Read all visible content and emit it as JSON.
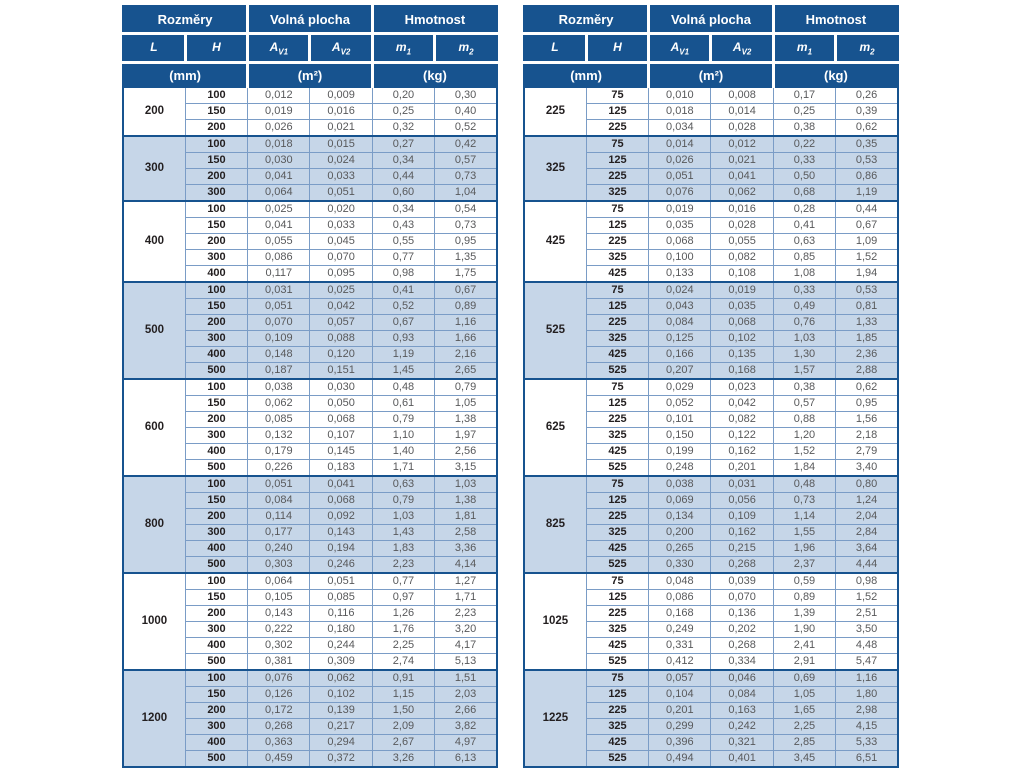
{
  "colors": {
    "header_bg": "#17538f",
    "header_text": "#ffffff",
    "row_alt_bg": "#c6d6e8",
    "grid_line": "#7a9cc6",
    "dimension_text": "#231f20",
    "value_text": "#58595b"
  },
  "header": {
    "groups": [
      {
        "label": "Rozměry",
        "unit": "(mm)"
      },
      {
        "label": "Volná plocha",
        "unit": "(m²)"
      },
      {
        "label": "Hmotnost",
        "unit": "(kg)"
      }
    ],
    "columns": [
      {
        "base": "L",
        "sub": ""
      },
      {
        "base": "H",
        "sub": ""
      },
      {
        "base": "A",
        "sub": "V1"
      },
      {
        "base": "A",
        "sub": "V2"
      },
      {
        "base": "m",
        "sub": "1"
      },
      {
        "base": "m",
        "sub": "2"
      }
    ]
  },
  "tables": [
    {
      "id": "left",
      "groups": [
        {
          "L": "200",
          "rows": [
            {
              "H": "100",
              "values": [
                "0,012",
                "0,009",
                "0,20",
                "0,30"
              ]
            },
            {
              "H": "150",
              "values": [
                "0,019",
                "0,016",
                "0,25",
                "0,40"
              ]
            },
            {
              "H": "200",
              "values": [
                "0,026",
                "0,021",
                "0,32",
                "0,52"
              ]
            }
          ]
        },
        {
          "L": "300",
          "rows": [
            {
              "H": "100",
              "values": [
                "0,018",
                "0,015",
                "0,27",
                "0,42"
              ]
            },
            {
              "H": "150",
              "values": [
                "0,030",
                "0,024",
                "0,34",
                "0,57"
              ]
            },
            {
              "H": "200",
              "values": [
                "0,041",
                "0,033",
                "0,44",
                "0,73"
              ]
            },
            {
              "H": "300",
              "values": [
                "0,064",
                "0,051",
                "0,60",
                "1,04"
              ]
            }
          ]
        },
        {
          "L": "400",
          "rows": [
            {
              "H": "100",
              "values": [
                "0,025",
                "0,020",
                "0,34",
                "0,54"
              ]
            },
            {
              "H": "150",
              "values": [
                "0,041",
                "0,033",
                "0,43",
                "0,73"
              ]
            },
            {
              "H": "200",
              "values": [
                "0,055",
                "0,045",
                "0,55",
                "0,95"
              ]
            },
            {
              "H": "300",
              "values": [
                "0,086",
                "0,070",
                "0,77",
                "1,35"
              ]
            },
            {
              "H": "400",
              "values": [
                "0,117",
                "0,095",
                "0,98",
                "1,75"
              ]
            }
          ]
        },
        {
          "L": "500",
          "rows": [
            {
              "H": "100",
              "values": [
                "0,031",
                "0,025",
                "0,41",
                "0,67"
              ]
            },
            {
              "H": "150",
              "values": [
                "0,051",
                "0,042",
                "0,52",
                "0,89"
              ]
            },
            {
              "H": "200",
              "values": [
                "0,070",
                "0,057",
                "0,67",
                "1,16"
              ]
            },
            {
              "H": "300",
              "values": [
                "0,109",
                "0,088",
                "0,93",
                "1,66"
              ]
            },
            {
              "H": "400",
              "values": [
                "0,148",
                "0,120",
                "1,19",
                "2,16"
              ]
            },
            {
              "H": "500",
              "values": [
                "0,187",
                "0,151",
                "1,45",
                "2,65"
              ]
            }
          ]
        },
        {
          "L": "600",
          "rows": [
            {
              "H": "100",
              "values": [
                "0,038",
                "0,030",
                "0,48",
                "0,79"
              ]
            },
            {
              "H": "150",
              "values": [
                "0,062",
                "0,050",
                "0,61",
                "1,05"
              ]
            },
            {
              "H": "200",
              "values": [
                "0,085",
                "0,068",
                "0,79",
                "1,38"
              ]
            },
            {
              "H": "300",
              "values": [
                "0,132",
                "0,107",
                "1,10",
                "1,97"
              ]
            },
            {
              "H": "400",
              "values": [
                "0,179",
                "0,145",
                "1,40",
                "2,56"
              ]
            },
            {
              "H": "500",
              "values": [
                "0,226",
                "0,183",
                "1,71",
                "3,15"
              ]
            }
          ]
        },
        {
          "L": "800",
          "rows": [
            {
              "H": "100",
              "values": [
                "0,051",
                "0,041",
                "0,63",
                "1,03"
              ]
            },
            {
              "H": "150",
              "values": [
                "0,084",
                "0,068",
                "0,79",
                "1,38"
              ]
            },
            {
              "H": "200",
              "values": [
                "0,114",
                "0,092",
                "1,03",
                "1,81"
              ]
            },
            {
              "H": "300",
              "values": [
                "0,177",
                "0,143",
                "1,43",
                "2,58"
              ]
            },
            {
              "H": "400",
              "values": [
                "0,240",
                "0,194",
                "1,83",
                "3,36"
              ]
            },
            {
              "H": "500",
              "values": [
                "0,303",
                "0,246",
                "2,23",
                "4,14"
              ]
            }
          ]
        },
        {
          "L": "1000",
          "rows": [
            {
              "H": "100",
              "values": [
                "0,064",
                "0,051",
                "0,77",
                "1,27"
              ]
            },
            {
              "H": "150",
              "values": [
                "0,105",
                "0,085",
                "0,97",
                "1,71"
              ]
            },
            {
              "H": "200",
              "values": [
                "0,143",
                "0,116",
                "1,26",
                "2,23"
              ]
            },
            {
              "H": "300",
              "values": [
                "0,222",
                "0,180",
                "1,76",
                "3,20"
              ]
            },
            {
              "H": "400",
              "values": [
                "0,302",
                "0,244",
                "2,25",
                "4,17"
              ]
            },
            {
              "H": "500",
              "values": [
                "0,381",
                "0,309",
                "2,74",
                "5,13"
              ]
            }
          ]
        },
        {
          "L": "1200",
          "rows": [
            {
              "H": "100",
              "values": [
                "0,076",
                "0,062",
                "0,91",
                "1,51"
              ]
            },
            {
              "H": "150",
              "values": [
                "0,126",
                "0,102",
                "1,15",
                "2,03"
              ]
            },
            {
              "H": "200",
              "values": [
                "0,172",
                "0,139",
                "1,50",
                "2,66"
              ]
            },
            {
              "H": "300",
              "values": [
                "0,268",
                "0,217",
                "2,09",
                "3,82"
              ]
            },
            {
              "H": "400",
              "values": [
                "0,363",
                "0,294",
                "2,67",
                "4,97"
              ]
            },
            {
              "H": "500",
              "values": [
                "0,459",
                "0,372",
                "3,26",
                "6,13"
              ]
            }
          ]
        }
      ]
    },
    {
      "id": "right",
      "groups": [
        {
          "L": "225",
          "rows": [
            {
              "H": "75",
              "values": [
                "0,010",
                "0,008",
                "0,17",
                "0,26"
              ]
            },
            {
              "H": "125",
              "values": [
                "0,018",
                "0,014",
                "0,25",
                "0,39"
              ]
            },
            {
              "H": "225",
              "values": [
                "0,034",
                "0,028",
                "0,38",
                "0,62"
              ]
            }
          ]
        },
        {
          "L": "325",
          "rows": [
            {
              "H": "75",
              "values": [
                "0,014",
                "0,012",
                "0,22",
                "0,35"
              ]
            },
            {
              "H": "125",
              "values": [
                "0,026",
                "0,021",
                "0,33",
                "0,53"
              ]
            },
            {
              "H": "225",
              "values": [
                "0,051",
                "0,041",
                "0,50",
                "0,86"
              ]
            },
            {
              "H": "325",
              "values": [
                "0,076",
                "0,062",
                "0,68",
                "1,19"
              ]
            }
          ]
        },
        {
          "L": "425",
          "rows": [
            {
              "H": "75",
              "values": [
                "0,019",
                "0,016",
                "0,28",
                "0,44"
              ]
            },
            {
              "H": "125",
              "values": [
                "0,035",
                "0,028",
                "0,41",
                "0,67"
              ]
            },
            {
              "H": "225",
              "values": [
                "0,068",
                "0,055",
                "0,63",
                "1,09"
              ]
            },
            {
              "H": "325",
              "values": [
                "0,100",
                "0,082",
                "0,85",
                "1,52"
              ]
            },
            {
              "H": "425",
              "values": [
                "0,133",
                "0,108",
                "1,08",
                "1,94"
              ]
            }
          ]
        },
        {
          "L": "525",
          "rows": [
            {
              "H": "75",
              "values": [
                "0,024",
                "0,019",
                "0,33",
                "0,53"
              ]
            },
            {
              "H": "125",
              "values": [
                "0,043",
                "0,035",
                "0,49",
                "0,81"
              ]
            },
            {
              "H": "225",
              "values": [
                "0,084",
                "0,068",
                "0,76",
                "1,33"
              ]
            },
            {
              "H": "325",
              "values": [
                "0,125",
                "0,102",
                "1,03",
                "1,85"
              ]
            },
            {
              "H": "425",
              "values": [
                "0,166",
                "0,135",
                "1,30",
                "2,36"
              ]
            },
            {
              "H": "525",
              "values": [
                "0,207",
                "0,168",
                "1,57",
                "2,88"
              ]
            }
          ]
        },
        {
          "L": "625",
          "rows": [
            {
              "H": "75",
              "values": [
                "0,029",
                "0,023",
                "0,38",
                "0,62"
              ]
            },
            {
              "H": "125",
              "values": [
                "0,052",
                "0,042",
                "0,57",
                "0,95"
              ]
            },
            {
              "H": "225",
              "values": [
                "0,101",
                "0,082",
                "0,88",
                "1,56"
              ]
            },
            {
              "H": "325",
              "values": [
                "0,150",
                "0,122",
                "1,20",
                "2,18"
              ]
            },
            {
              "H": "425",
              "values": [
                "0,199",
                "0,162",
                "1,52",
                "2,79"
              ]
            },
            {
              "H": "525",
              "values": [
                "0,248",
                "0,201",
                "1,84",
                "3,40"
              ]
            }
          ]
        },
        {
          "L": "825",
          "rows": [
            {
              "H": "75",
              "values": [
                "0,038",
                "0,031",
                "0,48",
                "0,80"
              ]
            },
            {
              "H": "125",
              "values": [
                "0,069",
                "0,056",
                "0,73",
                "1,24"
              ]
            },
            {
              "H": "225",
              "values": [
                "0,134",
                "0,109",
                "1,14",
                "2,04"
              ]
            },
            {
              "H": "325",
              "values": [
                "0,200",
                "0,162",
                "1,55",
                "2,84"
              ]
            },
            {
              "H": "425",
              "values": [
                "0,265",
                "0,215",
                "1,96",
                "3,64"
              ]
            },
            {
              "H": "525",
              "values": [
                "0,330",
                "0,268",
                "2,37",
                "4,44"
              ]
            }
          ]
        },
        {
          "L": "1025",
          "rows": [
            {
              "H": "75",
              "values": [
                "0,048",
                "0,039",
                "0,59",
                "0,98"
              ]
            },
            {
              "H": "125",
              "values": [
                "0,086",
                "0,070",
                "0,89",
                "1,52"
              ]
            },
            {
              "H": "225",
              "values": [
                "0,168",
                "0,136",
                "1,39",
                "2,51"
              ]
            },
            {
              "H": "325",
              "values": [
                "0,249",
                "0,202",
                "1,90",
                "3,50"
              ]
            },
            {
              "H": "425",
              "values": [
                "0,331",
                "0,268",
                "2,41",
                "4,48"
              ]
            },
            {
              "H": "525",
              "values": [
                "0,412",
                "0,334",
                "2,91",
                "5,47"
              ]
            }
          ]
        },
        {
          "L": "1225",
          "rows": [
            {
              "H": "75",
              "values": [
                "0,057",
                "0,046",
                "0,69",
                "1,16"
              ]
            },
            {
              "H": "125",
              "values": [
                "0,104",
                "0,084",
                "1,05",
                "1,80"
              ]
            },
            {
              "H": "225",
              "values": [
                "0,201",
                "0,163",
                "1,65",
                "2,98"
              ]
            },
            {
              "H": "325",
              "values": [
                "0,299",
                "0,242",
                "2,25",
                "4,15"
              ]
            },
            {
              "H": "425",
              "values": [
                "0,396",
                "0,321",
                "2,85",
                "5,33"
              ]
            },
            {
              "H": "525",
              "values": [
                "0,494",
                "0,401",
                "3,45",
                "6,51"
              ]
            }
          ]
        }
      ]
    }
  ]
}
